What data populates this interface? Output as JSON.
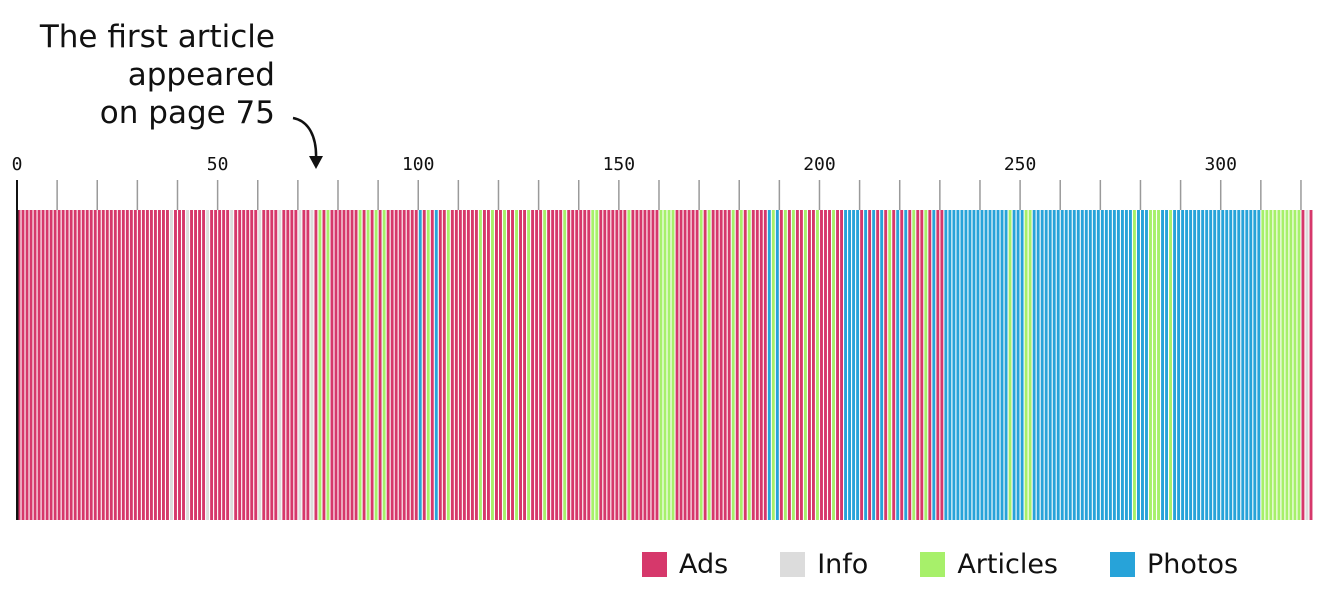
{
  "chart_data": {
    "type": "bar",
    "title": "",
    "xlabel": "",
    "ylabel": "",
    "xlim": [
      0,
      323
    ],
    "x_ticks": [
      0,
      50,
      100,
      150,
      200,
      250,
      300
    ],
    "minor_tick_step": 10,
    "unit": "page",
    "annotation": {
      "text": "The first article\nappeared\non page 75",
      "page": 75,
      "arrow": true
    },
    "colors": {
      "Ads": "#d6386b",
      "Info": "#dcdcdc",
      "Articles": "#a7f06a",
      "Photos": "#27a3d9"
    },
    "legend": {
      "position": "bottom-right",
      "entries": [
        "Ads",
        "Info",
        "Articles",
        "Photos"
      ]
    },
    "segments": [
      {
        "start": 0,
        "end": 38,
        "category": "Ads"
      },
      {
        "start": 38,
        "end": 39,
        "category": "Info"
      },
      {
        "start": 39,
        "end": 42,
        "category": "Ads"
      },
      {
        "start": 42,
        "end": 43,
        "category": "Info"
      },
      {
        "start": 43,
        "end": 47,
        "category": "Ads"
      },
      {
        "start": 47,
        "end": 48,
        "category": "Info"
      },
      {
        "start": 48,
        "end": 53,
        "category": "Ads"
      },
      {
        "start": 53,
        "end": 54,
        "category": "Info"
      },
      {
        "start": 54,
        "end": 60,
        "category": "Ads"
      },
      {
        "start": 60,
        "end": 61,
        "category": "Info"
      },
      {
        "start": 61,
        "end": 65,
        "category": "Ads"
      },
      {
        "start": 65,
        "end": 66,
        "category": "Info"
      },
      {
        "start": 66,
        "end": 70,
        "category": "Ads"
      },
      {
        "start": 70,
        "end": 71,
        "category": "Info"
      },
      {
        "start": 71,
        "end": 73,
        "category": "Ads"
      },
      {
        "start": 73,
        "end": 74,
        "category": "Info"
      },
      {
        "start": 74,
        "end": 75,
        "category": "Ads"
      },
      {
        "start": 75,
        "end": 76,
        "category": "Articles"
      },
      {
        "start": 76,
        "end": 77,
        "category": "Ads"
      },
      {
        "start": 77,
        "end": 78,
        "category": "Articles"
      },
      {
        "start": 78,
        "end": 85,
        "category": "Ads"
      },
      {
        "start": 85,
        "end": 86,
        "category": "Articles"
      },
      {
        "start": 86,
        "end": 87,
        "category": "Ads"
      },
      {
        "start": 87,
        "end": 88,
        "category": "Articles"
      },
      {
        "start": 88,
        "end": 89,
        "category": "Ads"
      },
      {
        "start": 89,
        "end": 90,
        "category": "Articles"
      },
      {
        "start": 90,
        "end": 91,
        "category": "Ads"
      },
      {
        "start": 91,
        "end": 92,
        "category": "Articles"
      },
      {
        "start": 92,
        "end": 100,
        "category": "Ads"
      },
      {
        "start": 100,
        "end": 101,
        "category": "Photos"
      },
      {
        "start": 101,
        "end": 102,
        "category": "Ads"
      },
      {
        "start": 102,
        "end": 103,
        "category": "Articles"
      },
      {
        "start": 103,
        "end": 104,
        "category": "Ads"
      },
      {
        "start": 104,
        "end": 105,
        "category": "Photos"
      },
      {
        "start": 105,
        "end": 107,
        "category": "Ads"
      },
      {
        "start": 107,
        "end": 108,
        "category": "Articles"
      },
      {
        "start": 108,
        "end": 115,
        "category": "Ads"
      },
      {
        "start": 115,
        "end": 116,
        "category": "Articles"
      },
      {
        "start": 116,
        "end": 118,
        "category": "Ads"
      },
      {
        "start": 118,
        "end": 119,
        "category": "Articles"
      },
      {
        "start": 119,
        "end": 121,
        "category": "Ads"
      },
      {
        "start": 121,
        "end": 122,
        "category": "Articles"
      },
      {
        "start": 122,
        "end": 124,
        "category": "Ads"
      },
      {
        "start": 124,
        "end": 125,
        "category": "Articles"
      },
      {
        "start": 125,
        "end": 127,
        "category": "Ads"
      },
      {
        "start": 127,
        "end": 128,
        "category": "Articles"
      },
      {
        "start": 128,
        "end": 131,
        "category": "Ads"
      },
      {
        "start": 131,
        "end": 132,
        "category": "Articles"
      },
      {
        "start": 132,
        "end": 136,
        "category": "Ads"
      },
      {
        "start": 136,
        "end": 137,
        "category": "Articles"
      },
      {
        "start": 137,
        "end": 143,
        "category": "Ads"
      },
      {
        "start": 143,
        "end": 145,
        "category": "Articles"
      },
      {
        "start": 145,
        "end": 152,
        "category": "Ads"
      },
      {
        "start": 152,
        "end": 153,
        "category": "Articles"
      },
      {
        "start": 153,
        "end": 160,
        "category": "Ads"
      },
      {
        "start": 160,
        "end": 164,
        "category": "Articles"
      },
      {
        "start": 164,
        "end": 170,
        "category": "Ads"
      },
      {
        "start": 170,
        "end": 171,
        "category": "Articles"
      },
      {
        "start": 171,
        "end": 172,
        "category": "Ads"
      },
      {
        "start": 172,
        "end": 173,
        "category": "Articles"
      },
      {
        "start": 173,
        "end": 178,
        "category": "Ads"
      },
      {
        "start": 178,
        "end": 179,
        "category": "Articles"
      },
      {
        "start": 179,
        "end": 180,
        "category": "Ads"
      },
      {
        "start": 180,
        "end": 181,
        "category": "Articles"
      },
      {
        "start": 181,
        "end": 182,
        "category": "Ads"
      },
      {
        "start": 182,
        "end": 183,
        "category": "Articles"
      },
      {
        "start": 183,
        "end": 187,
        "category": "Ads"
      },
      {
        "start": 187,
        "end": 188,
        "category": "Photos"
      },
      {
        "start": 188,
        "end": 189,
        "category": "Articles"
      },
      {
        "start": 189,
        "end": 190,
        "category": "Photos"
      },
      {
        "start": 190,
        "end": 191,
        "category": "Ads"
      },
      {
        "start": 191,
        "end": 192,
        "category": "Articles"
      },
      {
        "start": 192,
        "end": 193,
        "category": "Ads"
      },
      {
        "start": 193,
        "end": 194,
        "category": "Articles"
      },
      {
        "start": 194,
        "end": 196,
        "category": "Ads"
      },
      {
        "start": 196,
        "end": 197,
        "category": "Articles"
      },
      {
        "start": 197,
        "end": 199,
        "category": "Ads"
      },
      {
        "start": 199,
        "end": 200,
        "category": "Articles"
      },
      {
        "start": 200,
        "end": 203,
        "category": "Ads"
      },
      {
        "start": 203,
        "end": 204,
        "category": "Articles"
      },
      {
        "start": 204,
        "end": 206,
        "category": "Ads"
      },
      {
        "start": 206,
        "end": 210,
        "category": "Photos"
      },
      {
        "start": 210,
        "end": 211,
        "category": "Ads"
      },
      {
        "start": 211,
        "end": 212,
        "category": "Photos"
      },
      {
        "start": 212,
        "end": 213,
        "category": "Ads"
      },
      {
        "start": 213,
        "end": 214,
        "category": "Photos"
      },
      {
        "start": 214,
        "end": 215,
        "category": "Ads"
      },
      {
        "start": 215,
        "end": 216,
        "category": "Photos"
      },
      {
        "start": 216,
        "end": 217,
        "category": "Ads"
      },
      {
        "start": 217,
        "end": 218,
        "category": "Articles"
      },
      {
        "start": 218,
        "end": 219,
        "category": "Ads"
      },
      {
        "start": 219,
        "end": 220,
        "category": "Photos"
      },
      {
        "start": 220,
        "end": 221,
        "category": "Ads"
      },
      {
        "start": 221,
        "end": 222,
        "category": "Photos"
      },
      {
        "start": 222,
        "end": 223,
        "category": "Ads"
      },
      {
        "start": 223,
        "end": 224,
        "category": "Articles"
      },
      {
        "start": 224,
        "end": 226,
        "category": "Ads"
      },
      {
        "start": 226,
        "end": 227,
        "category": "Articles"
      },
      {
        "start": 227,
        "end": 228,
        "category": "Ads"
      },
      {
        "start": 228,
        "end": 229,
        "category": "Photos"
      },
      {
        "start": 229,
        "end": 231,
        "category": "Ads"
      },
      {
        "start": 231,
        "end": 247,
        "category": "Photos"
      },
      {
        "start": 247,
        "end": 248,
        "category": "Articles"
      },
      {
        "start": 248,
        "end": 251,
        "category": "Photos"
      },
      {
        "start": 251,
        "end": 253,
        "category": "Articles"
      },
      {
        "start": 253,
        "end": 278,
        "category": "Photos"
      },
      {
        "start": 278,
        "end": 279,
        "category": "Articles"
      },
      {
        "start": 279,
        "end": 282,
        "category": "Photos"
      },
      {
        "start": 282,
        "end": 285,
        "category": "Articles"
      },
      {
        "start": 285,
        "end": 287,
        "category": "Photos"
      },
      {
        "start": 287,
        "end": 288,
        "category": "Articles"
      },
      {
        "start": 288,
        "end": 310,
        "category": "Photos"
      },
      {
        "start": 310,
        "end": 320,
        "category": "Articles"
      },
      {
        "start": 320,
        "end": 321,
        "category": "Ads"
      },
      {
        "start": 321,
        "end": 322,
        "category": "Info"
      },
      {
        "start": 322,
        "end": 323,
        "category": "Ads"
      }
    ]
  }
}
